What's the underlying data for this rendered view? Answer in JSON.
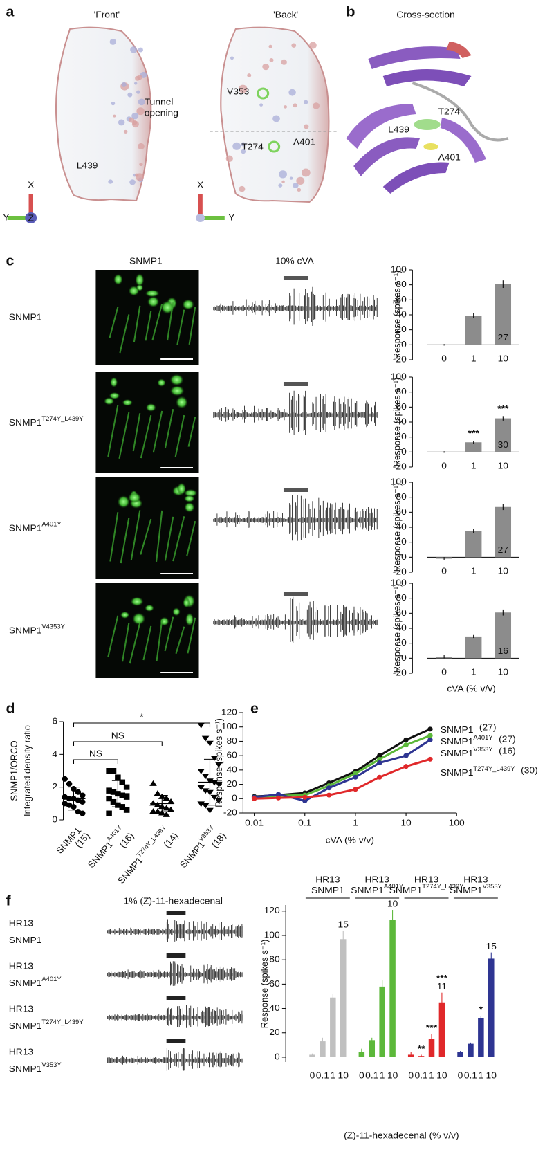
{
  "panel_labels": [
    "a",
    "b",
    "c",
    "d",
    "e",
    "f"
  ],
  "panel_a": {
    "views": [
      "'Front'",
      "'Back'"
    ],
    "tunnel": [
      "Tunnel",
      "opening"
    ],
    "front_residue": "L439",
    "back_residues": [
      "V353",
      "T274",
      "A401"
    ],
    "axes_front": [
      "X",
      "Y",
      "Z"
    ],
    "axes_back": [
      "X",
      "Y"
    ]
  },
  "panel_b": {
    "title": "Cross-section",
    "residues": [
      "T274",
      "L439",
      "A401"
    ]
  },
  "panel_c": {
    "image_title": "SNMP1",
    "stimulus": "10% cVA",
    "rows": [
      {
        "base": "SNMP1"
      },
      {
        "base": "SNMP1",
        "sup": "T274Y_L439Y"
      },
      {
        "base": "SNMP1",
        "sup": "A401Y"
      },
      {
        "base": "SNMP1",
        "sup": "V4353Y"
      }
    ]
  },
  "panel_f": {
    "stimulus": "1% (Z)-11-hexadecenal",
    "rows": [
      {
        "line1": "HR13",
        "base": "SNMP1"
      },
      {
        "line1": "HR13",
        "base": "SNMP1",
        "sup": "A401Y"
      },
      {
        "line1": "HR13",
        "base": "SNMP1",
        "sup": "T274Y_L439Y"
      },
      {
        "line1": "HR13",
        "base": "SNMP1",
        "sup": "V353Y"
      }
    ]
  },
  "chart_data": [
    {
      "type": "bar",
      "categories": [
        "0",
        "1",
        "10"
      ],
      "values": [
        0,
        39,
        81
      ],
      "errors": [
        1,
        3,
        5
      ],
      "color": "#8c8c8c",
      "ylim": [
        -20,
        100
      ],
      "yticks": [
        -20,
        0,
        20,
        40,
        60,
        80,
        100
      ],
      "ylabel": "Response (spikes s⁻¹)",
      "n_label": "27"
    },
    {
      "type": "bar",
      "categories": [
        "0",
        "1",
        "10"
      ],
      "values": [
        0,
        13,
        45
      ],
      "errors": [
        1,
        2,
        3
      ],
      "color": "#8c8c8c",
      "ylim": [
        -20,
        100
      ],
      "yticks": [
        -20,
        0,
        20,
        40,
        60,
        80,
        100
      ],
      "ylabel": "Response (spikes s⁻¹)",
      "n_label": "30",
      "annotations": [
        null,
        "***",
        "***"
      ]
    },
    {
      "type": "bar",
      "categories": [
        "0",
        "1",
        "10"
      ],
      "values": [
        -2,
        35,
        67
      ],
      "errors": [
        2,
        3,
        4
      ],
      "color": "#8c8c8c",
      "ylim": [
        -20,
        100
      ],
      "yticks": [
        -20,
        0,
        20,
        40,
        60,
        80,
        100
      ],
      "ylabel": "Response (spikes s⁻¹)",
      "n_label": "27"
    },
    {
      "type": "bar",
      "categories": [
        "0",
        "1",
        "10"
      ],
      "values": [
        2,
        29,
        61
      ],
      "errors": [
        2,
        2,
        4
      ],
      "color": "#8c8c8c",
      "ylim": [
        -20,
        100
      ],
      "yticks": [
        -20,
        0,
        20,
        40,
        60,
        80,
        100
      ],
      "ylabel": "Response (spikes s⁻¹)",
      "n_label": "16",
      "xlabel": "cVA (% v/v)"
    },
    {
      "type": "dot",
      "categories": [
        "SNMP1",
        "SNMP1",
        "SNMP1",
        "SNMP1"
      ],
      "category_sups": [
        null,
        "A401Y",
        "T274Y_L439Y",
        "V353Y"
      ],
      "n_labels": [
        "(15)",
        "(16)",
        "(14)",
        "(18)"
      ],
      "points": [
        [
          2.5,
          2.2,
          1.9,
          1.7,
          1.5,
          1.4,
          1.3,
          1.3,
          1.2,
          1.1,
          1.0,
          0.9,
          0.8,
          0.5,
          0.4
        ],
        [
          3.0,
          3.0,
          2.6,
          2.3,
          2.0,
          1.8,
          1.7,
          1.6,
          1.5,
          1.4,
          1.3,
          1.1,
          0.9,
          0.8,
          0.6,
          0.4
        ],
        [
          2.2,
          1.6,
          1.4,
          1.3,
          1.1,
          1.0,
          0.9,
          0.8,
          0.7,
          0.6,
          0.5,
          0.5,
          0.4,
          0.3
        ],
        [
          5.8,
          5.0,
          4.7,
          3.8,
          3.4,
          3.0,
          2.7,
          2.4,
          2.3,
          2.2,
          2.0,
          1.8,
          1.7,
          1.4,
          1.2,
          1.0,
          0.9,
          0.6
        ]
      ],
      "means": [
        1.3,
        1.6,
        1.0,
        2.3
      ],
      "sd": [
        0.7,
        0.8,
        0.5,
        1.4
      ],
      "ylim": [
        0,
        6
      ],
      "yticks": [
        0,
        2,
        4,
        6
      ],
      "ylabel": [
        "SNMP1/ORCO",
        "Integrated density ratio"
      ],
      "comparisons": [
        "NS",
        "NS",
        "*"
      ]
    },
    {
      "type": "line",
      "xscale": "log",
      "x": [
        0.01,
        0.03,
        0.1,
        0.3,
        1,
        3,
        10,
        30
      ],
      "xlim": [
        0.006,
        100
      ],
      "xticks": [
        0.01,
        0.1,
        1,
        10,
        100
      ],
      "ylim": [
        -20,
        120
      ],
      "yticks": [
        -20,
        0,
        20,
        40,
        60,
        80,
        100,
        120
      ],
      "xlabel": "cVA (% v/v)",
      "ylabel": "Response (spikes s⁻¹)",
      "series": [
        {
          "name": "SNMP1",
          "n_label": "(27)",
          "color": "#111111",
          "values": [
            3,
            5,
            8,
            22,
            38,
            60,
            82,
            97
          ]
        },
        {
          "name": "SNMP1",
          "sup": "A401Y",
          "n_label": "(27)",
          "color": "#5cb83a",
          "values": [
            2,
            4,
            5,
            18,
            35,
            55,
            75,
            88
          ]
        },
        {
          "name": "SNMP1",
          "sup": "V353Y",
          "n_label": "(16)",
          "color": "#2e3592",
          "values": [
            2,
            6,
            -3,
            15,
            30,
            50,
            60,
            82
          ]
        },
        {
          "name": "SNMP1",
          "sup": "T274Y_L439Y",
          "n_label": "(30)",
          "color": "#e0282a",
          "values": [
            0,
            1,
            2,
            5,
            13,
            30,
            45,
            55
          ]
        }
      ]
    },
    {
      "type": "grouped_bar",
      "categories": [
        "0",
        "0.1",
        "1",
        "10"
      ],
      "ylim": [
        -4,
        125
      ],
      "yticks": [
        0,
        20,
        40,
        60,
        80,
        100,
        120
      ],
      "ylabel": "Response (spikes s⁻¹)",
      "xlabel": "(Z)-11-hexadecenal (% v/v)",
      "series": [
        {
          "name": [
            "HR13",
            "SNMP1"
          ],
          "color": "#c0c0c0",
          "values": [
            2,
            13,
            49,
            97
          ],
          "errors": [
            1,
            3,
            3,
            7
          ],
          "n_label": "15"
        },
        {
          "name": [
            "HR13",
            "SNMP1"
          ],
          "sup": "A401Y",
          "color": "#5cb83a",
          "values": [
            4,
            14,
            58,
            113
          ],
          "errors": [
            3,
            2,
            5,
            8
          ],
          "n_label": "10"
        },
        {
          "name": [
            "HR13",
            "SNMP1"
          ],
          "sup": "T274Y_L439Y",
          "color": "#e0282a",
          "values": [
            2,
            1,
            15,
            45
          ],
          "errors": [
            2,
            1,
            4,
            8
          ],
          "n_label": "11",
          "annotations": [
            null,
            "**",
            "***",
            "***"
          ]
        },
        {
          "name": [
            "HR13",
            "SNMP1"
          ],
          "sup": "V353Y",
          "color": "#2e3592",
          "values": [
            4,
            11,
            32,
            81
          ],
          "errors": [
            1,
            1,
            2,
            5
          ],
          "n_label": "15",
          "annotations": [
            null,
            null,
            "*",
            null
          ]
        }
      ]
    }
  ]
}
